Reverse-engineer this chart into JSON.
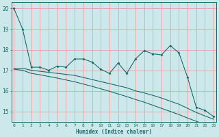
{
  "xlabel": "Humidex (Indice chaleur)",
  "bg_color": "#cce8ea",
  "grid_color": "#e8a0a0",
  "line_color": "#1a6b6b",
  "xlim": [
    -0.3,
    23.3
  ],
  "ylim": [
    14.5,
    20.3
  ],
  "yticks": [
    15,
    16,
    17,
    18,
    19,
    20
  ],
  "xticks": [
    0,
    1,
    2,
    3,
    4,
    5,
    6,
    7,
    8,
    9,
    10,
    11,
    12,
    13,
    14,
    15,
    16,
    17,
    18,
    19,
    20,
    21,
    22,
    23
  ],
  "line1_x": [
    0,
    1,
    2,
    3,
    4,
    5,
    6,
    7,
    8,
    9,
    10,
    11,
    12,
    13,
    14,
    15,
    16,
    17,
    18,
    19,
    20,
    21,
    22,
    23
  ],
  "line1_y": [
    20.0,
    19.0,
    17.15,
    17.15,
    17.0,
    17.2,
    17.15,
    17.55,
    17.55,
    17.4,
    17.05,
    16.85,
    17.35,
    16.85,
    17.55,
    17.95,
    17.8,
    17.75,
    18.2,
    17.85,
    16.65,
    15.2,
    15.05,
    14.75
  ],
  "line2_x": [
    0,
    1,
    2,
    3,
    4,
    5,
    6,
    7,
    8,
    9,
    10,
    11,
    12,
    13,
    14,
    15,
    16,
    17,
    18,
    19,
    20,
    21,
    22,
    23
  ],
  "line2_y": [
    17.1,
    17.1,
    17.0,
    16.95,
    16.9,
    16.85,
    16.8,
    16.75,
    16.65,
    16.55,
    16.45,
    16.35,
    16.25,
    16.15,
    16.0,
    15.9,
    15.78,
    15.65,
    15.5,
    15.35,
    15.15,
    14.95,
    14.78,
    14.62
  ],
  "line3_x": [
    0,
    1,
    2,
    3,
    4,
    5,
    6,
    7,
    8,
    9,
    10,
    11,
    12,
    13,
    14,
    15,
    16,
    17,
    18,
    19,
    20,
    21,
    22,
    23
  ],
  "line3_y": [
    17.05,
    17.0,
    16.85,
    16.78,
    16.7,
    16.62,
    16.53,
    16.44,
    16.33,
    16.22,
    16.1,
    15.98,
    15.85,
    15.72,
    15.58,
    15.45,
    15.3,
    15.15,
    15.0,
    14.85,
    14.68,
    14.52,
    14.38,
    14.24
  ]
}
